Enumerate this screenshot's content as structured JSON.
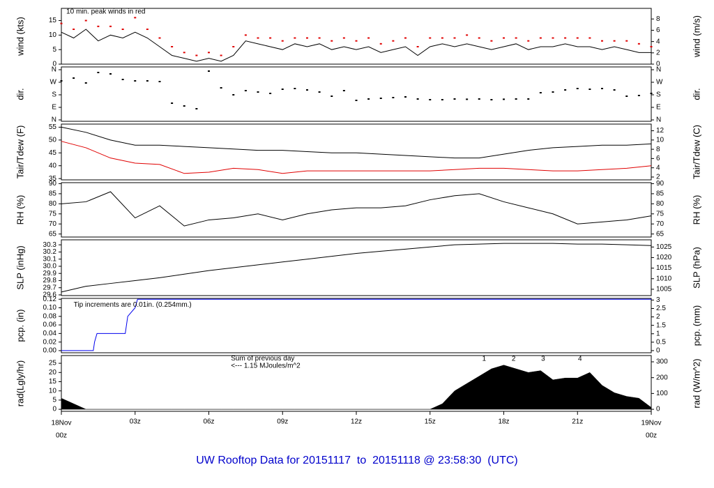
{
  "title": "UW Rooftop Data for 20151117  to  20151118 @ 23:58:30  (UTC)",
  "time_axis": {
    "xlim": [
      0,
      24
    ],
    "xticks": [
      {
        "value": 0,
        "date": "18Nov",
        "label": "00z"
      },
      {
        "value": 3,
        "label": "03z"
      },
      {
        "value": 6,
        "label": "06z"
      },
      {
        "value": 9,
        "label": "09z"
      },
      {
        "value": 12,
        "label": "12z"
      },
      {
        "value": 15,
        "label": "15z"
      },
      {
        "value": 18,
        "label": "18z"
      },
      {
        "value": 21,
        "label": "21z"
      },
      {
        "value": 24,
        "date": "19Nov",
        "label": "00z"
      }
    ]
  },
  "chart_data": [
    {
      "type": "line",
      "ylabel": "wind (kts)",
      "y2label": "wind (m/s)",
      "ylim": [
        0,
        19.2
      ],
      "yticks": [
        0,
        5,
        10,
        15
      ],
      "y2lim": [
        0,
        9.88
      ],
      "y2ticks": [
        0,
        2,
        4,
        6,
        8
      ],
      "annotations": [
        {
          "text": "10 min. peak winds in red",
          "x": 0.2,
          "y": 18,
          "color": "#d00000"
        }
      ],
      "x": [
        0,
        0.5,
        1,
        1.5,
        2,
        2.5,
        3,
        3.5,
        4,
        4.5,
        5,
        5.5,
        6,
        6.5,
        7,
        7.5,
        8,
        8.5,
        9,
        9.5,
        10,
        10.5,
        11,
        11.5,
        12,
        12.5,
        13,
        13.5,
        14,
        14.5,
        15,
        15.5,
        16,
        16.5,
        17,
        17.5,
        18,
        18.5,
        19,
        19.5,
        20,
        20.5,
        21,
        21.5,
        22,
        22.5,
        23,
        23.5,
        24
      ],
      "series": [
        {
          "color": "#000000",
          "mark": "line",
          "values": [
            11,
            9,
            12,
            8,
            10,
            9,
            11,
            9,
            6,
            3,
            2,
            1,
            2,
            1,
            3,
            8,
            7,
            6,
            5,
            7,
            6,
            7,
            5,
            6,
            5,
            6,
            4,
            5,
            6,
            3,
            6,
            7,
            6,
            7,
            6,
            5,
            6,
            7,
            5,
            6,
            6,
            7,
            6,
            6,
            5,
            6,
            5,
            4,
            4
          ]
        },
        {
          "color": "#e00000",
          "mark": "dot",
          "values": [
            14,
            12,
            15,
            13,
            13,
            12,
            16,
            12,
            9,
            6,
            4,
            3,
            4,
            3,
            6,
            10,
            9,
            9,
            8,
            9,
            9,
            9,
            8,
            9,
            8,
            9,
            7,
            8,
            9,
            6,
            9,
            9,
            9,
            10,
            9,
            8,
            9,
            9,
            8,
            9,
            9,
            9,
            9,
            9,
            8,
            8,
            8,
            7,
            6
          ]
        }
      ]
    },
    {
      "type": "scatter",
      "ylabel": "dir.",
      "y2label": "dir.",
      "mirror_ticks": true,
      "ylim": [
        -10,
        380
      ],
      "yticks": [
        {
          "value": 360,
          "label": "N"
        },
        {
          "value": 270,
          "label": "W"
        },
        {
          "value": 180,
          "label": "S"
        },
        {
          "value": 90,
          "label": "E"
        },
        {
          "value": 0,
          "label": "N"
        }
      ],
      "x": [
        0,
        0.5,
        1,
        1.5,
        2,
        2.5,
        3,
        3.5,
        4,
        4.5,
        5,
        5.5,
        6,
        6.5,
        7,
        7.5,
        8,
        8.5,
        9,
        9.5,
        10,
        10.5,
        11,
        11.5,
        12,
        12.5,
        13,
        13.5,
        14,
        14.5,
        15,
        15.5,
        16,
        16.5,
        17,
        17.5,
        18,
        18.5,
        19,
        19.5,
        20,
        20.5,
        21,
        21.5,
        22,
        22.5,
        23,
        23.5,
        24
      ],
      "series": [
        {
          "color": "#000000",
          "values": [
            280,
            300,
            265,
            340,
            330,
            290,
            280,
            280,
            275,
            120,
            100,
            80,
            350,
            230,
            180,
            210,
            200,
            190,
            220,
            225,
            215,
            200,
            170,
            210,
            140,
            150,
            155,
            160,
            165,
            150,
            145,
            145,
            150,
            148,
            150,
            145,
            148,
            150,
            150,
            195,
            200,
            215,
            225,
            220,
            225,
            215,
            170,
            175,
            190
          ]
        }
      ]
    },
    {
      "type": "line",
      "ylabel": "Tair/Tdew (F)",
      "y2label": "Tair/Tdew (C)",
      "ylim": [
        34.5,
        56.2
      ],
      "yticks": [
        35,
        40,
        45,
        50,
        55
      ],
      "y2lim": [
        1.39,
        13.44
      ],
      "y2ticks": [
        2,
        4,
        6,
        8,
        10,
        12
      ],
      "x": [
        0,
        1,
        2,
        3,
        4,
        5,
        6,
        7,
        8,
        9,
        10,
        11,
        12,
        13,
        14,
        15,
        16,
        17,
        18,
        19,
        20,
        21,
        22,
        23,
        24
      ],
      "series": [
        {
          "color": "#000000",
          "mark": "line",
          "values": [
            55,
            53,
            50,
            48,
            48,
            47.5,
            47,
            46.5,
            46,
            46,
            45.5,
            45,
            45,
            44.5,
            44,
            43.5,
            43,
            43,
            44.5,
            46,
            47,
            47.5,
            48,
            48,
            48.5
          ]
        },
        {
          "color": "#e00000",
          "mark": "line",
          "values": [
            49.5,
            47,
            43,
            41,
            40.5,
            37,
            37.5,
            39,
            38.5,
            37,
            38,
            38,
            38,
            38,
            38,
            38,
            38.5,
            39,
            39,
            38.5,
            38,
            38,
            38.5,
            39,
            40
          ]
        }
      ]
    },
    {
      "type": "line",
      "ylabel": "RH (%)",
      "y2label": "RH (%)",
      "mirror_ticks": true,
      "ylim": [
        63.5,
        90.5
      ],
      "yticks": [
        65,
        70,
        75,
        80,
        85,
        90
      ],
      "x": [
        0,
        1,
        2,
        3,
        4,
        5,
        6,
        7,
        8,
        9,
        10,
        11,
        12,
        13,
        14,
        15,
        16,
        17,
        18,
        19,
        20,
        21,
        22,
        23,
        24
      ],
      "series": [
        {
          "color": "#000000",
          "mark": "line",
          "values": [
            80,
            81,
            86,
            73,
            79,
            69,
            72,
            73,
            75,
            72,
            75,
            77,
            78,
            78,
            79,
            82,
            84,
            85,
            81,
            78,
            75,
            70,
            71,
            72,
            74
          ]
        }
      ]
    },
    {
      "type": "line",
      "ylabel": "SLP (inHg)",
      "y2label": "SLP (hPa)",
      "ylim": [
        29.59,
        30.37
      ],
      "yticks": [
        {
          "value": 29.6,
          "label": "29.6"
        },
        {
          "value": 29.7,
          "label": "29.7"
        },
        {
          "value": 29.8,
          "label": "29.8"
        },
        {
          "value": 29.9,
          "label": "29.9"
        },
        {
          "value": 30,
          "label": "30.0"
        },
        {
          "value": 30.1,
          "label": "30.1"
        },
        {
          "value": 30.2,
          "label": "30.2"
        },
        {
          "value": 30.3,
          "label": "30.3"
        }
      ],
      "y2lim": [
        1002.0,
        1028.4
      ],
      "y2ticks": [
        1005,
        1010,
        1015,
        1020,
        1025
      ],
      "x": [
        0,
        1,
        2,
        3,
        4,
        5,
        6,
        7,
        8,
        9,
        10,
        11,
        12,
        13,
        14,
        15,
        16,
        17,
        18,
        19,
        20,
        21,
        22,
        23,
        24
      ],
      "series": [
        {
          "color": "#000000",
          "mark": "line",
          "values": [
            29.64,
            29.72,
            29.76,
            29.8,
            29.84,
            29.89,
            29.94,
            29.98,
            30.02,
            30.06,
            30.1,
            30.14,
            30.18,
            30.21,
            30.24,
            30.27,
            30.3,
            30.31,
            30.32,
            30.32,
            30.32,
            30.31,
            30.31,
            30.3,
            30.29
          ]
        }
      ]
    },
    {
      "type": "line",
      "ylabel": "pcp. (in)",
      "y2label": "pcp. (mm)",
      "ylim": [
        -0.005,
        0.122
      ],
      "yticks": [
        {
          "value": 0,
          "label": "0.00"
        },
        {
          "value": 0.02,
          "label": "0.02"
        },
        {
          "value": 0.04,
          "label": "0.04"
        },
        {
          "value": 0.06,
          "label": "0.06"
        },
        {
          "value": 0.08,
          "label": "0.08"
        },
        {
          "value": 0.1,
          "label": "0.10"
        },
        {
          "value": 0.12,
          "label": "0.12"
        }
      ],
      "y2lim": [
        -0.127,
        3.099
      ],
      "y2ticks": [
        0,
        0.5,
        1,
        1.5,
        2,
        2.5,
        3
      ],
      "annotations": [
        {
          "text": "Tip increments are 0.01in. (0.254mm.)",
          "x": 0.5,
          "y": 0.107,
          "color": "#0000cc"
        }
      ],
      "x": [
        0,
        1.3,
        1.35,
        1.45,
        2.6,
        2.7,
        3,
        3.1,
        24
      ],
      "series": [
        {
          "color": "#0000ee",
          "mark": "line",
          "values": [
            0,
            0,
            0.02,
            0.04,
            0.04,
            0.08,
            0.1,
            0.12,
            0.12
          ]
        }
      ]
    },
    {
      "type": "area",
      "ylabel": "rad(Lgly/hr)",
      "y2label": "rad (W/m^2)",
      "ylim": [
        -1.1,
        29.2
      ],
      "yticks": [
        0,
        5,
        10,
        15,
        20,
        25
      ],
      "y2lim": [
        -12.8,
        339.6
      ],
      "y2ticks": [
        0,
        100,
        200,
        300
      ],
      "annotations": [
        {
          "text": "Sum of previous day",
          "x": 6.9,
          "y": 27.5,
          "color": "#8000a0"
        },
        {
          "text": "<--- 1.15 MJoules/m^2",
          "x": 6.9,
          "y": 23.5,
          "color": "#8000a0"
        }
      ],
      "markers": [
        {
          "x": 17.2,
          "label": "1"
        },
        {
          "x": 18.4,
          "label": "2"
        },
        {
          "x": 19.6,
          "label": "3"
        },
        {
          "x": 21.1,
          "label": "4"
        }
      ],
      "x": [
        0,
        0.5,
        1,
        1.5,
        2,
        2.5,
        3,
        3.5,
        4,
        4.5,
        5,
        5.5,
        6,
        6.5,
        7,
        7.5,
        8,
        8.5,
        9,
        9.5,
        10,
        10.5,
        11,
        11.5,
        12,
        12.5,
        13,
        13.5,
        14,
        14.5,
        15,
        15.5,
        16,
        16.5,
        17,
        17.5,
        18,
        18.5,
        19,
        19.5,
        20,
        20.5,
        21,
        21.5,
        22,
        22.5,
        23,
        23.5,
        24
      ],
      "series": [
        {
          "color": "#000000",
          "values": [
            6,
            3,
            0,
            0,
            0,
            0,
            0,
            0,
            0,
            0,
            0,
            0,
            0,
            0,
            0,
            0,
            0,
            0,
            0,
            0,
            0,
            0,
            0,
            0,
            0,
            0,
            0,
            0,
            0,
            0,
            0,
            3,
            10,
            14,
            18,
            22,
            24,
            22,
            20,
            21,
            16,
            17,
            17,
            20,
            13,
            9,
            7,
            6,
            1
          ]
        }
      ]
    }
  ]
}
